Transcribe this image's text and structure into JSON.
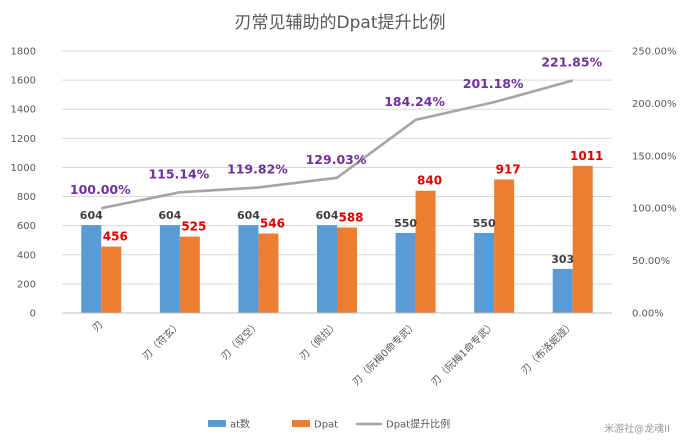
{
  "chart_data": {
    "type": "bar",
    "title": "刃常见辅助的Dpat提升比例",
    "categories": [
      "刃",
      "刃（符玄）",
      "刃（驭空）",
      "刃（佩拉）",
      "刃（阮梅0命专武）",
      "刃（阮梅1命专武）",
      "刃（布洛妮娅）"
    ],
    "series": [
      {
        "name": "at数",
        "type": "bar",
        "axis": "left",
        "color": "#5b9bd5",
        "values": [
          604,
          604,
          604,
          604,
          550,
          550,
          303
        ]
      },
      {
        "name": "Dpat",
        "type": "bar",
        "axis": "left",
        "color": "#ed7d31",
        "values": [
          456,
          525,
          546,
          588,
          840,
          917,
          1011
        ]
      },
      {
        "name": "Dpat提升比例",
        "type": "line",
        "axis": "right",
        "color": "#a5a5a5",
        "values": [
          100.0,
          115.14,
          119.82,
          129.03,
          184.24,
          201.18,
          221.85
        ]
      }
    ],
    "data_labels": {
      "at": [
        "604",
        "604",
        "604",
        "604",
        "550",
        "550",
        "303"
      ],
      "dpat": [
        "456",
        "525",
        "546",
        "588",
        "840",
        "917",
        "1011"
      ],
      "pct": [
        "100.00%",
        "115.14%",
        "119.82%",
        "129.03%",
        "184.24%",
        "201.18%",
        "221.85%"
      ]
    },
    "y_left": {
      "min": 0,
      "max": 1800,
      "ticks": [
        "0",
        "200",
        "400",
        "600",
        "800",
        "1000",
        "1200",
        "1400",
        "1600",
        "1800"
      ]
    },
    "y_right": {
      "min": 0,
      "max": 250,
      "ticks": [
        "0.00%",
        "50.00%",
        "100.00%",
        "150.00%",
        "200.00%",
        "250.00%"
      ]
    },
    "grid": true,
    "legend": "bottom"
  },
  "watermark": "米游社@龙魂II"
}
